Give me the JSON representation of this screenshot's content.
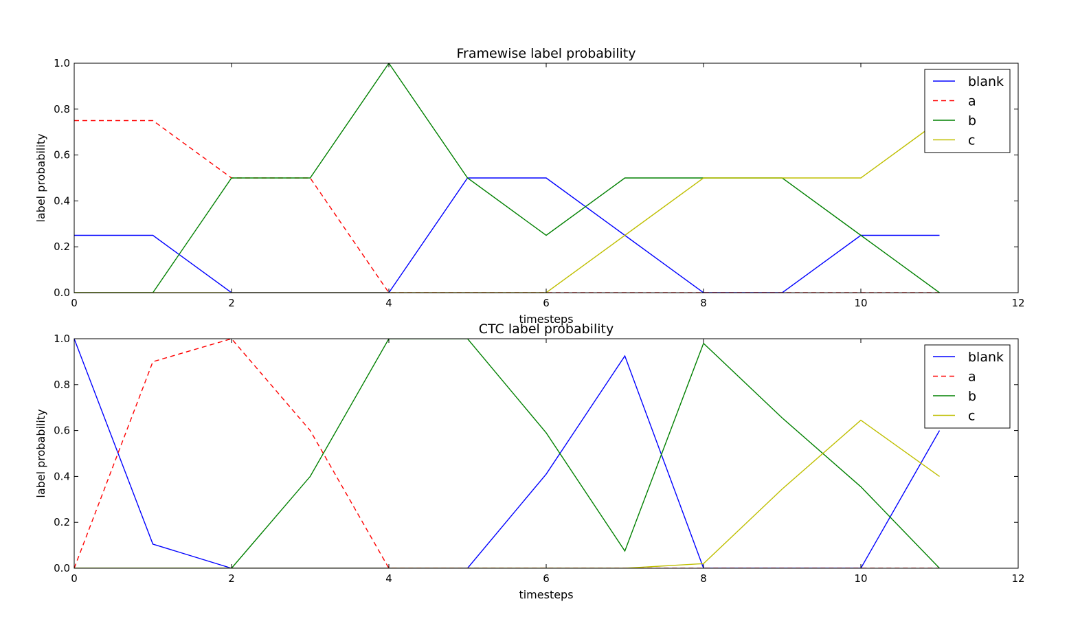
{
  "chart_data": [
    {
      "type": "line",
      "title": "Framewise label probability",
      "xlabel": "timesteps",
      "ylabel": "label probability",
      "xlim": [
        0,
        12
      ],
      "ylim": [
        0.0,
        1.0
      ],
      "xticks": [
        "0",
        "2",
        "4",
        "6",
        "8",
        "10",
        "12"
      ],
      "yticks": [
        "0.0",
        "0.2",
        "0.4",
        "0.6",
        "0.8",
        "1.0"
      ],
      "grid": false,
      "legend_position": "top-right",
      "x": [
        0,
        1,
        2,
        3,
        4,
        5,
        6,
        7,
        8,
        9,
        10,
        11
      ],
      "series": [
        {
          "name": "blank",
          "color": "#0000ff",
          "dash": "solid",
          "values": [
            0.25,
            0.25,
            0.0,
            0.0,
            0.0,
            0.5,
            0.5,
            0.25,
            0.0,
            0.0,
            0.25,
            0.25
          ]
        },
        {
          "name": "a",
          "color": "#ff0000",
          "dash": "dashed",
          "values": [
            0.75,
            0.75,
            0.5,
            0.5,
            0.0,
            0.0,
            0.0,
            0.0,
            0.0,
            0.0,
            0.0,
            0.0
          ]
        },
        {
          "name": "b",
          "color": "#008000",
          "dash": "solid",
          "values": [
            0.0,
            0.0,
            0.5,
            0.5,
            1.0,
            0.5,
            0.25,
            0.5,
            0.5,
            0.5,
            0.25,
            0.0
          ]
        },
        {
          "name": "c",
          "color": "#bfbf00",
          "dash": "solid",
          "values": [
            0.0,
            0.0,
            0.0,
            0.0,
            0.0,
            0.0,
            0.0,
            0.25,
            0.5,
            0.5,
            0.5,
            0.75
          ]
        }
      ]
    },
    {
      "type": "line",
      "title": "CTC label probability",
      "xlabel": "timesteps",
      "ylabel": "label probability",
      "xlim": [
        0,
        12
      ],
      "ylim": [
        0.0,
        1.0
      ],
      "xticks": [
        "0",
        "2",
        "4",
        "6",
        "8",
        "10",
        "12"
      ],
      "yticks": [
        "0.0",
        "0.2",
        "0.4",
        "0.6",
        "0.8",
        "1.0"
      ],
      "grid": false,
      "legend_position": "top-right",
      "x": [
        0,
        1,
        2,
        3,
        4,
        5,
        6,
        7,
        8,
        9,
        10,
        11
      ],
      "series": [
        {
          "name": "blank",
          "color": "#0000ff",
          "dash": "solid",
          "values": [
            1.0,
            0.105,
            0.0,
            0.0,
            0.0,
            0.0,
            0.41,
            0.925,
            0.0,
            0.0,
            0.0,
            0.6
          ]
        },
        {
          "name": "a",
          "color": "#ff0000",
          "dash": "dashed",
          "values": [
            0.0,
            0.9,
            1.0,
            0.6,
            0.0,
            0.0,
            0.0,
            0.0,
            0.0,
            0.0,
            0.0,
            0.0
          ]
        },
        {
          "name": "b",
          "color": "#008000",
          "dash": "solid",
          "values": [
            0.0,
            0.0,
            0.0,
            0.4,
            1.0,
            1.0,
            0.59,
            0.075,
            0.98,
            0.655,
            0.355,
            0.0
          ]
        },
        {
          "name": "c",
          "color": "#bfbf00",
          "dash": "solid",
          "values": [
            0.0,
            0.0,
            0.0,
            0.0,
            0.0,
            0.0,
            0.0,
            0.0,
            0.02,
            0.345,
            0.645,
            0.4
          ]
        }
      ]
    }
  ]
}
